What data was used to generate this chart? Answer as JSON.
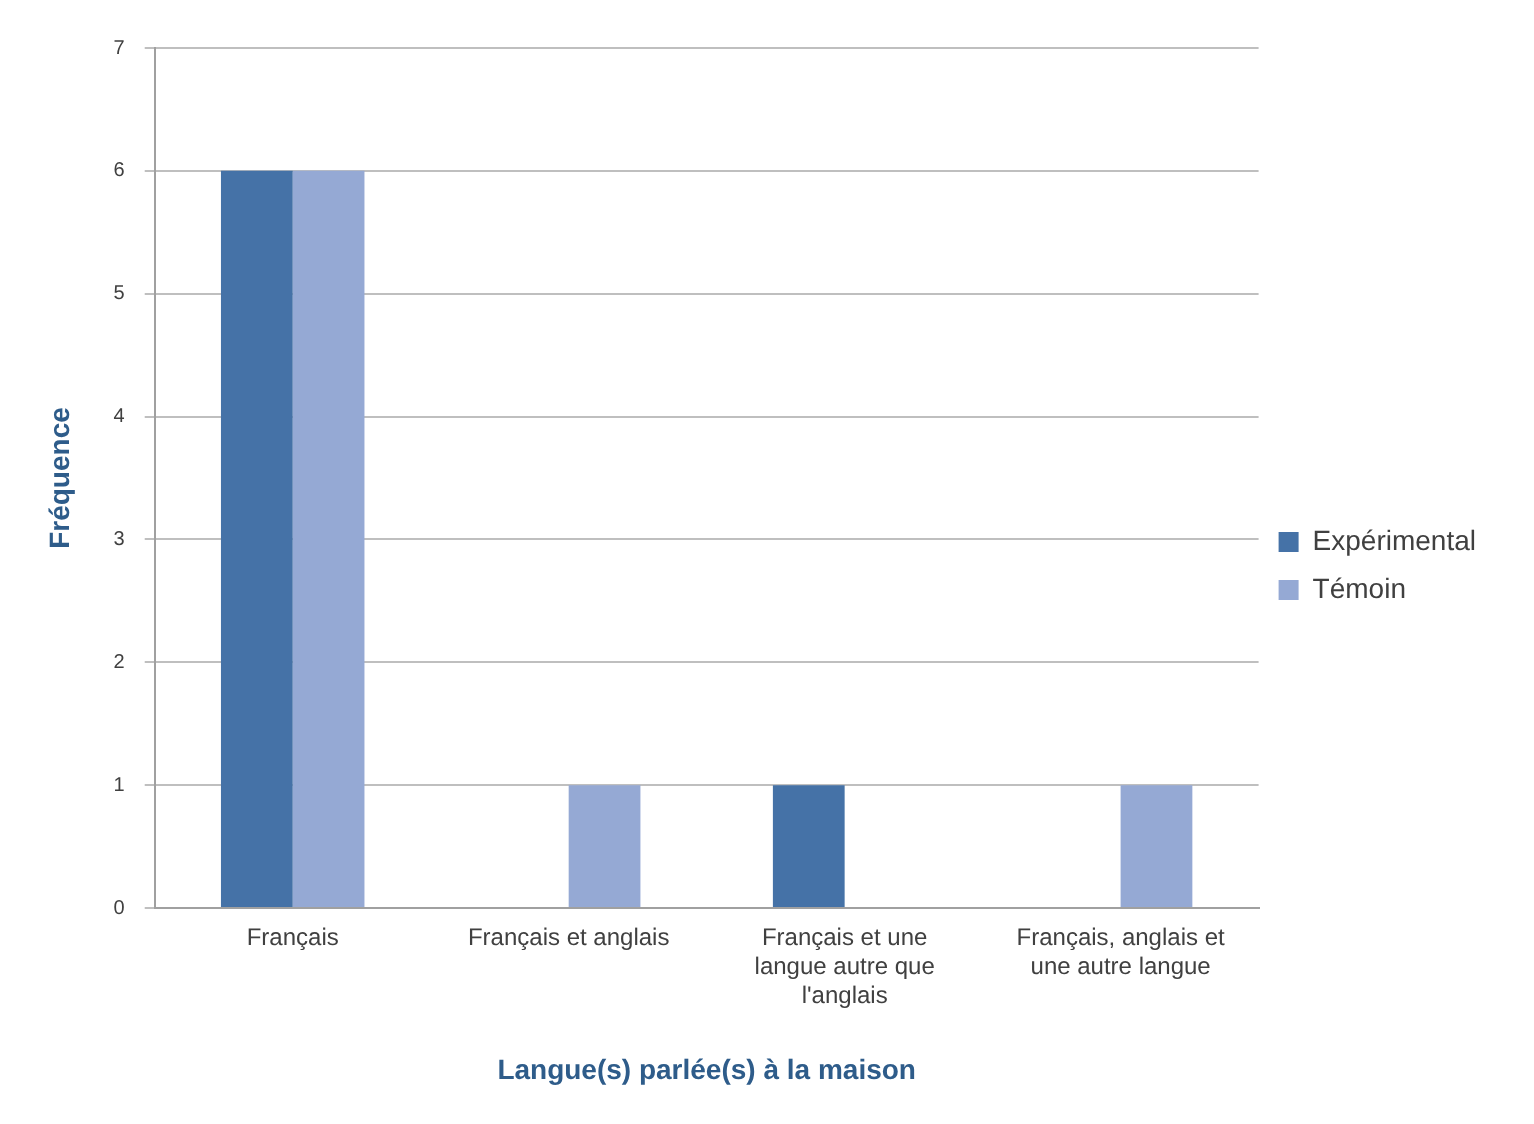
{
  "chart_data": {
    "type": "bar",
    "xlabel": "Langue(s) parlée(s) à la maison",
    "ylabel": "Fréquence",
    "categories": [
      "Français",
      "Français et anglais",
      "Français et une langue autre que l'anglais",
      "Français, anglais et une autre langue"
    ],
    "series": [
      {
        "name": "Expérimental",
        "color": "#4572a7",
        "values": [
          6,
          0,
          1,
          0
        ]
      },
      {
        "name": "Témoin",
        "color": "#95a9d4",
        "values": [
          6,
          1,
          0,
          1
        ]
      }
    ],
    "ylim": [
      0,
      7
    ],
    "yticks": [
      0,
      1,
      2,
      3,
      4,
      5,
      6,
      7
    ],
    "grid": "y",
    "legend": "right"
  }
}
